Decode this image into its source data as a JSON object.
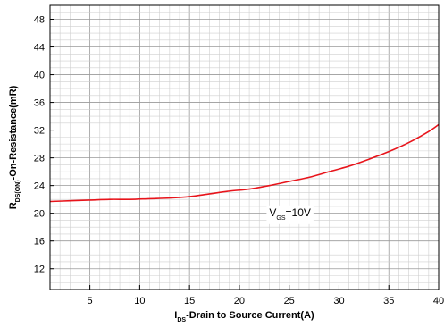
{
  "chart_data": {
    "type": "line",
    "xlabel": {
      "main": "I",
      "sub": "DS",
      "rest": "-Drain to Source Current(A)"
    },
    "ylabel": {
      "main": "R",
      "sub": "DS(ON)",
      "rest": "-On-Resistance(mR)"
    },
    "xlim": [
      1,
      40
    ],
    "ylim": [
      9,
      50
    ],
    "x_ticks": [
      5,
      10,
      15,
      20,
      25,
      30,
      35,
      40
    ],
    "x_tick_labels": [
      "5",
      "10",
      "15",
      "20",
      "25",
      "30",
      "35",
      "40"
    ],
    "y_ticks": [
      12,
      16,
      20,
      24,
      28,
      32,
      36,
      40,
      44,
      48
    ],
    "y_tick_labels": [
      "12",
      "16",
      "20",
      "24",
      "28",
      "32",
      "36",
      "40",
      "44",
      "48"
    ],
    "grid": true,
    "series": [
      {
        "color": "#e8141b",
        "x": [
          1,
          3,
          5,
          7,
          9,
          11,
          13,
          15,
          17,
          19,
          21,
          23,
          25,
          27,
          29,
          31,
          33,
          35,
          37,
          39,
          40
        ],
        "y": [
          21.7,
          21.8,
          21.9,
          22.0,
          22.0,
          22.1,
          22.2,
          22.4,
          22.8,
          23.2,
          23.5,
          24.0,
          24.6,
          25.2,
          26.0,
          26.8,
          27.8,
          28.9,
          30.2,
          31.8,
          32.8
        ]
      }
    ],
    "annotation": {
      "main": "V",
      "sub": "GS",
      "rest": "=10V",
      "x": 23,
      "y": 19.6
    }
  }
}
